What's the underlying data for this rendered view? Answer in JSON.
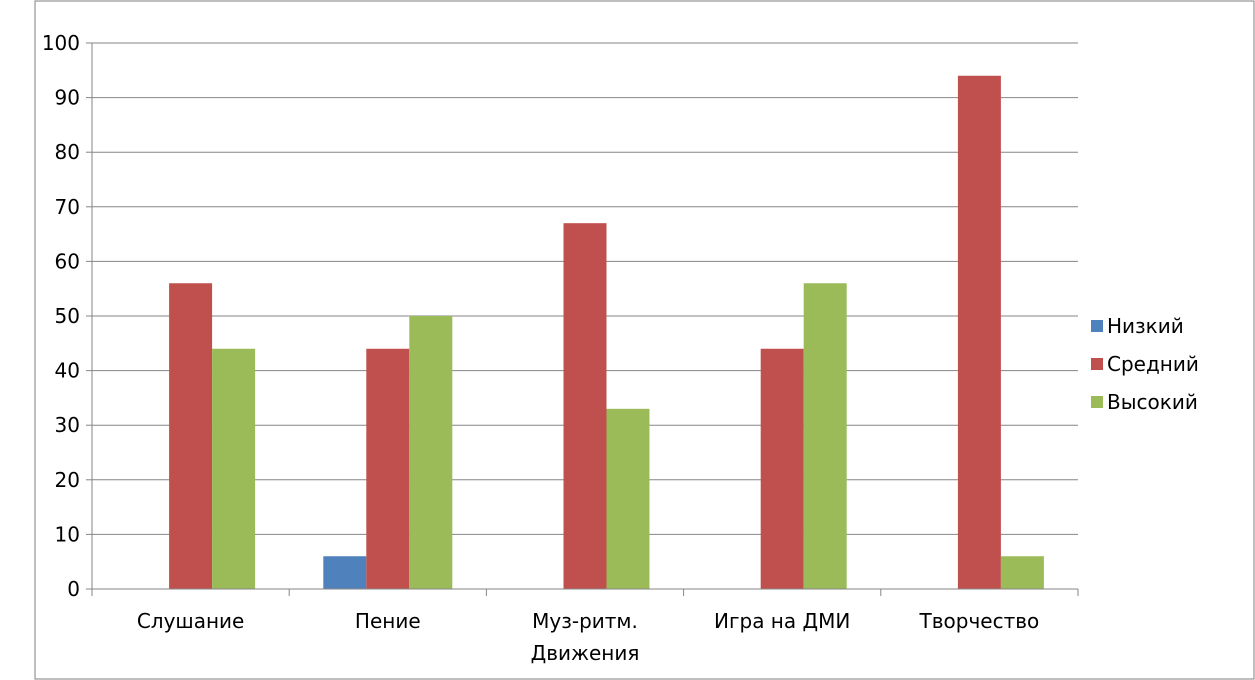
{
  "chart_data": {
    "type": "bar",
    "title": "",
    "categories": [
      [
        "Слушание"
      ],
      [
        "Пение"
      ],
      [
        "Муз-ритм.",
        "Движения"
      ],
      [
        "Игра на ДМИ"
      ],
      [
        "Творчество"
      ]
    ],
    "series": [
      {
        "name": "Низкий",
        "color": "#4f81bd",
        "values": [
          0,
          6,
          0,
          0,
          0
        ]
      },
      {
        "name": "Средний",
        "color": "#c0504d",
        "values": [
          56,
          44,
          67,
          44,
          94
        ]
      },
      {
        "name": "Высокий",
        "color": "#9bbb59",
        "values": [
          44,
          50,
          33,
          56,
          6
        ]
      }
    ],
    "ylim": [
      0,
      100
    ],
    "yticks": [
      "0",
      "10",
      "20",
      "30",
      "40",
      "50",
      "60",
      "70",
      "80",
      "90",
      "100"
    ],
    "grid": true,
    "legend_position": "right"
  }
}
